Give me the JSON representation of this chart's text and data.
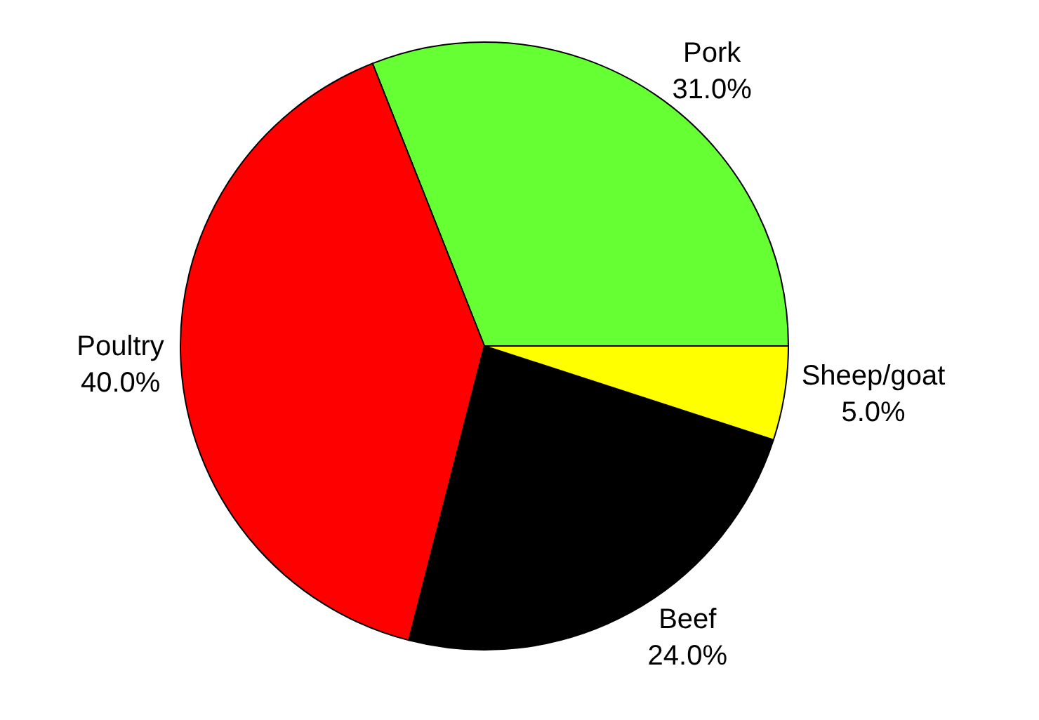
{
  "chart_data": {
    "type": "pie",
    "categories": [
      "Pork",
      "Poultry",
      "Beef",
      "Sheep/goat"
    ],
    "values": [
      31,
      40,
      24,
      5
    ],
    "colors": [
      "#66ff33",
      "#ff0000",
      "#000000",
      "#ffff00"
    ],
    "value_labels": [
      "31.0%",
      "40.0%",
      "24.0%",
      "5.0%"
    ],
    "legend": false
  }
}
